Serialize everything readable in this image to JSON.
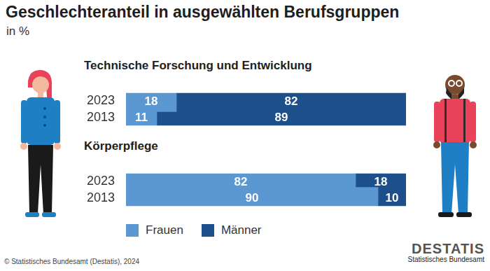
{
  "title": "Geschlechteranteil in ausgewählten Berufsgruppen",
  "subtitle": "in %",
  "chart_data": [
    {
      "type": "bar",
      "title": "Technische Forschung und Entwicklung",
      "orientation": "horizontal",
      "stacked": true,
      "data_labels": true,
      "tick_labels": "y",
      "grid": false,
      "categories": [
        "2023",
        "2013"
      ],
      "xlim": [
        0,
        100
      ],
      "series": [
        {
          "name": "Frauen",
          "color": "#5b97d1",
          "values": [
            18,
            11
          ]
        },
        {
          "name": "Männer",
          "color": "#1d4f8a",
          "values": [
            82,
            89
          ]
        }
      ]
    },
    {
      "type": "bar",
      "title": "Körperpflege",
      "orientation": "horizontal",
      "stacked": true,
      "data_labels": true,
      "tick_labels": "y",
      "grid": false,
      "legend": "bottom",
      "categories": [
        "2023",
        "2013"
      ],
      "xlim": [
        0,
        100
      ],
      "series": [
        {
          "name": "Frauen",
          "color": "#5b97d1",
          "values": [
            82,
            90
          ]
        },
        {
          "name": "Männer",
          "color": "#1d4f8a",
          "values": [
            18,
            10
          ]
        }
      ]
    }
  ],
  "source": "© Statistisches Bundesamt (Destatis), 2024",
  "logo": {
    "name": "DESTATIS",
    "subtitle": "Statistisches Bundesamt"
  }
}
